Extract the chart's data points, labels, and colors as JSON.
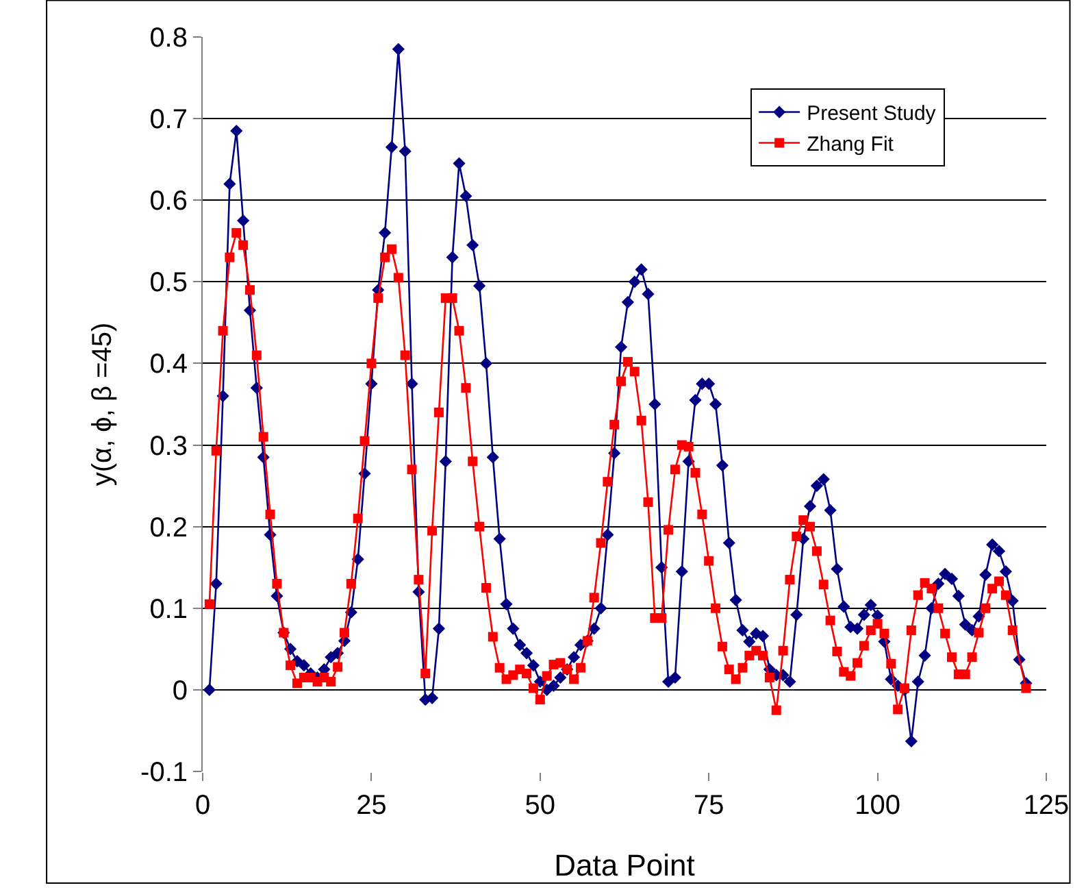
{
  "chart_data": {
    "type": "line",
    "xlabel": "Data Point",
    "ylabel": "y(α, ϕ, β =45)",
    "xlim": [
      0,
      125
    ],
    "xticks": [
      0,
      25,
      50,
      75,
      100,
      125
    ],
    "ylim": [
      -0.1,
      0.8
    ],
    "yticks": [
      -0.1,
      0,
      0.1,
      0.2,
      0.3,
      0.4,
      0.5,
      0.6,
      0.7,
      0.8
    ],
    "grid": "y",
    "legend": "top right",
    "series": [
      {
        "name": "Present Study",
        "color": "#000080",
        "marker": "diamond",
        "x": [
          1,
          2,
          3,
          4,
          5,
          6,
          7,
          8,
          9,
          10,
          11,
          12,
          13,
          14,
          15,
          16,
          17,
          18,
          19,
          20,
          21,
          22,
          23,
          24,
          25,
          26,
          27,
          28,
          29,
          30,
          31,
          32,
          33,
          34,
          35,
          36,
          37,
          38,
          39,
          40,
          41,
          42,
          43,
          44,
          45,
          46,
          47,
          48,
          49,
          50,
          51,
          52,
          53,
          54,
          55,
          56,
          57,
          58,
          59,
          60,
          61,
          62,
          63,
          64,
          65,
          66,
          67,
          68,
          69,
          70,
          71,
          72,
          73,
          74,
          75,
          76,
          77,
          78,
          79,
          80,
          81,
          82,
          83,
          84,
          85,
          86,
          87,
          88,
          89,
          90,
          91,
          92,
          93,
          94,
          95,
          96,
          97,
          98,
          99,
          100,
          101,
          102,
          103,
          104,
          105,
          106,
          107,
          108,
          109,
          110,
          111,
          112,
          113,
          114,
          115,
          116,
          117,
          118,
          119,
          120,
          121,
          122
        ],
        "values": [
          0,
          0.13,
          0.36,
          0.62,
          0.685,
          0.575,
          0.465,
          0.37,
          0.285,
          0.19,
          0.115,
          0.07,
          0.05,
          0.035,
          0.03,
          0.02,
          0.015,
          0.025,
          0.04,
          0.045,
          0.06,
          0.095,
          0.16,
          0.265,
          0.375,
          0.49,
          0.56,
          0.665,
          0.785,
          0.66,
          0.375,
          0.12,
          -0.012,
          -0.01,
          0.075,
          0.28,
          0.53,
          0.645,
          0.605,
          0.545,
          0.495,
          0.4,
          0.285,
          0.185,
          0.105,
          0.075,
          0.055,
          0.045,
          0.03,
          0.01,
          0.0,
          0.005,
          0.015,
          0.025,
          0.04,
          0.055,
          0.06,
          0.075,
          0.1,
          0.19,
          0.29,
          0.42,
          0.475,
          0.5,
          0.515,
          0.485,
          0.35,
          0.15,
          0.01,
          0.015,
          0.145,
          0.28,
          0.355,
          0.375,
          0.375,
          0.35,
          0.275,
          0.18,
          0.11,
          0.073,
          0.059,
          0.069,
          0.066,
          0.025,
          0.018,
          0.018,
          0.01,
          0.092,
          0.185,
          0.225,
          0.25,
          0.258,
          0.22,
          0.148,
          0.102,
          0.077,
          0.075,
          0.092,
          0.104,
          0.091,
          0.059,
          0.013,
          0.005,
          0.0,
          -0.063,
          0.01,
          0.042,
          0.1,
          0.13,
          0.142,
          0.136,
          0.115,
          0.08,
          0.073,
          0.09,
          0.141,
          0.178,
          0.17,
          0.145,
          0.109,
          0.037,
          0.008
        ]
      },
      {
        "name": "Zhang Fit",
        "color": "#ff0000",
        "marker": "square",
        "x": [
          1,
          2,
          3,
          4,
          5,
          6,
          7,
          8,
          9,
          10,
          11,
          12,
          13,
          14,
          15,
          16,
          17,
          18,
          19,
          20,
          21,
          22,
          23,
          24,
          25,
          26,
          27,
          28,
          29,
          30,
          31,
          32,
          33,
          34,
          35,
          36,
          37,
          38,
          39,
          40,
          41,
          42,
          43,
          44,
          45,
          46,
          47,
          48,
          49,
          50,
          51,
          52,
          53,
          54,
          55,
          56,
          57,
          58,
          59,
          60,
          61,
          62,
          63,
          64,
          65,
          66,
          67,
          68,
          69,
          70,
          71,
          72,
          73,
          74,
          75,
          76,
          77,
          78,
          79,
          80,
          81,
          82,
          83,
          84,
          85,
          86,
          87,
          88,
          89,
          90,
          91,
          92,
          93,
          94,
          95,
          96,
          97,
          98,
          99,
          100,
          101,
          102,
          103,
          104,
          105,
          106,
          107,
          108,
          109,
          110,
          111,
          112,
          113,
          114,
          115,
          116,
          117,
          118,
          119,
          120,
          122
        ],
        "values": [
          0.105,
          0.293,
          0.44,
          0.53,
          0.56,
          0.545,
          0.49,
          0.41,
          0.31,
          0.215,
          0.13,
          0.07,
          0.03,
          0.008,
          0.015,
          0.015,
          0.01,
          0.015,
          0.01,
          0.028,
          0.07,
          0.13,
          0.21,
          0.305,
          0.4,
          0.48,
          0.53,
          0.54,
          0.505,
          0.41,
          0.27,
          0.135,
          0.02,
          0.195,
          0.34,
          0.48,
          0.48,
          0.44,
          0.37,
          0.28,
          0.2,
          0.125,
          0.065,
          0.027,
          0.013,
          0.018,
          0.025,
          0.02,
          0.002,
          -0.012,
          0.017,
          0.031,
          0.033,
          0.025,
          0.013,
          0.027,
          0.06,
          0.113,
          0.18,
          0.255,
          0.325,
          0.378,
          0.402,
          0.39,
          0.33,
          0.23,
          0.088,
          0.088,
          0.196,
          0.27,
          0.3,
          0.298,
          0.266,
          0.215,
          0.158,
          0.1,
          0.053,
          0.025,
          0.013,
          0.027,
          0.042,
          0.048,
          0.042,
          0.015,
          -0.025,
          0.048,
          0.135,
          0.188,
          0.208,
          0.2,
          0.17,
          0.129,
          0.085,
          0.047,
          0.022,
          0.017,
          0.033,
          0.054,
          0.073,
          0.081,
          0.069,
          0.032,
          -0.024,
          0.002,
          0.073,
          0.116,
          0.131,
          0.124,
          0.1,
          0.069,
          0.04,
          0.019,
          0.019,
          0.04,
          0.07,
          0.1,
          0.124,
          0.133,
          0.116,
          0.073,
          0.002
        ]
      }
    ]
  }
}
